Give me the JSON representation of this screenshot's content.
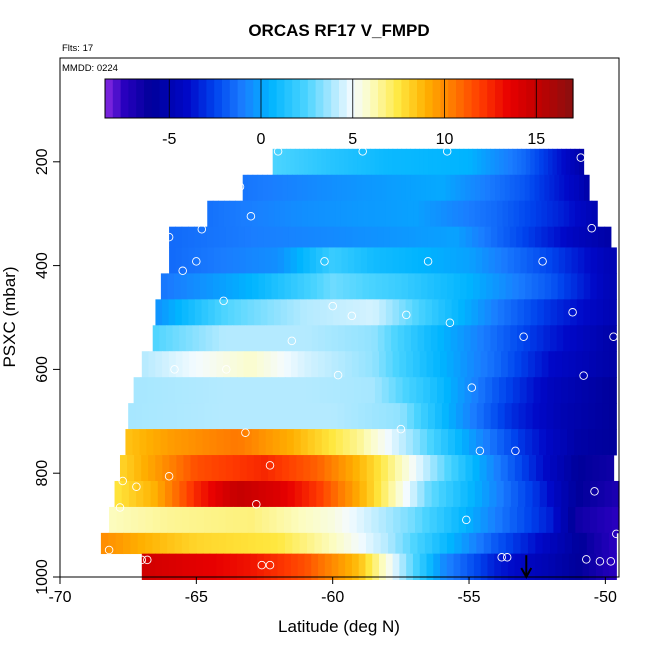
{
  "chart_data": {
    "type": "heatmap",
    "title": "ORCAS RF17 V_FMPD",
    "corner_labels": [
      "Flts: 17",
      "MMDD: 0224"
    ],
    "xlabel": "Latitude (deg N)",
    "ylabel": "PSXC (mbar)",
    "xlim": [
      -70,
      -49.5
    ],
    "ylim": [
      1000,
      0
    ],
    "x_ticks": [
      -70,
      -65,
      -60,
      -55,
      -50
    ],
    "y_ticks": [
      200,
      400,
      600,
      800,
      1000
    ],
    "x_tick_labels": [
      "-70",
      "-65",
      "-60",
      "-55",
      "-50"
    ],
    "y_tick_labels": [
      "200",
      "400",
      "600",
      "800",
      "1000"
    ],
    "colorbar": {
      "range": [
        -8.5,
        17
      ],
      "ticks": [
        -5,
        0,
        5,
        10,
        15
      ],
      "tick_labels": [
        "-5",
        "0",
        "5",
        "10",
        "15"
      ],
      "colors": [
        {
          "v": -8.5,
          "c": "#8a2be2"
        },
        {
          "v": -7.5,
          "c": "#2a00c0"
        },
        {
          "v": -6.0,
          "c": "#00009a"
        },
        {
          "v": -4.0,
          "c": "#0008c8"
        },
        {
          "v": -2.5,
          "c": "#0044ee"
        },
        {
          "v": -1.0,
          "c": "#1a7dff"
        },
        {
          "v": 0.5,
          "c": "#00b4ff"
        },
        {
          "v": 2.5,
          "c": "#4cd4ff"
        },
        {
          "v": 4.0,
          "c": "#b4eaff"
        },
        {
          "v": 5.0,
          "c": "#f4fbff"
        },
        {
          "v": 6.0,
          "c": "#fcfcc0"
        },
        {
          "v": 7.5,
          "c": "#ffe840"
        },
        {
          "v": 9.0,
          "c": "#ffb000"
        },
        {
          "v": 10.5,
          "c": "#ff7800"
        },
        {
          "v": 12.0,
          "c": "#ff3a00"
        },
        {
          "v": 13.5,
          "c": "#e80000"
        },
        {
          "v": 15.0,
          "c": "#c40000"
        },
        {
          "v": 17.0,
          "c": "#8a1010"
        }
      ]
    },
    "bands": [
      {
        "p0": 175,
        "p1": 225,
        "x0": -62.2,
        "x1": -50.8,
        "stops": [
          [
            -62.2,
            2.5
          ],
          [
            -60,
            1.5
          ],
          [
            -58,
            0.8
          ],
          [
            -55,
            0.5
          ],
          [
            -53,
            -1.5
          ],
          [
            -51.5,
            -4
          ],
          [
            -50.8,
            -5.5
          ]
        ]
      },
      {
        "p0": 225,
        "p1": 275,
        "x0": -63.3,
        "x1": -50.6,
        "stops": [
          [
            -63.3,
            -1.2
          ],
          [
            -60,
            -0.5
          ],
          [
            -56,
            0.2
          ],
          [
            -53,
            -2
          ],
          [
            -51,
            -4.5
          ],
          [
            -50.6,
            -5.5
          ]
        ]
      },
      {
        "p0": 275,
        "p1": 325,
        "x0": -64.6,
        "x1": -50.3,
        "stops": [
          [
            -64.6,
            -1.3
          ],
          [
            -61,
            -0.5
          ],
          [
            -57,
            0
          ],
          [
            -54,
            -1.5
          ],
          [
            -51.5,
            -3.5
          ],
          [
            -50.3,
            -5
          ]
        ]
      },
      {
        "p0": 325,
        "p1": 365,
        "x0": -66.0,
        "x1": -49.8,
        "stops": [
          [
            -66,
            -1.5
          ],
          [
            -63,
            -1
          ],
          [
            -59,
            -0.5
          ],
          [
            -55.5,
            0
          ],
          [
            -53,
            -2.5
          ],
          [
            -51,
            -4.5
          ],
          [
            -49.8,
            -5.5
          ]
        ]
      },
      {
        "p0": 365,
        "p1": 415,
        "x0": -66.0,
        "x1": -49.6,
        "stops": [
          [
            -66,
            -1.5
          ],
          [
            -62,
            -0.5
          ],
          [
            -60,
            2
          ],
          [
            -58.5,
            1
          ],
          [
            -55,
            0
          ],
          [
            -52,
            -2.5
          ],
          [
            -49.6,
            -5
          ]
        ]
      },
      {
        "p0": 415,
        "p1": 465,
        "x0": -66.3,
        "x1": -49.6,
        "stops": [
          [
            -66.3,
            -1.2
          ],
          [
            -63,
            0.5
          ],
          [
            -60,
            3
          ],
          [
            -57.5,
            2
          ],
          [
            -55,
            0.5
          ],
          [
            -52,
            -2
          ],
          [
            -49.6,
            -5
          ]
        ]
      },
      {
        "p0": 465,
        "p1": 515,
        "x0": -66.5,
        "x1": -49.6,
        "stops": [
          [
            -66.5,
            -0.5
          ],
          [
            -64,
            2.5
          ],
          [
            -61,
            4
          ],
          [
            -58.5,
            4.5
          ],
          [
            -56.5,
            2
          ],
          [
            -54,
            -1
          ],
          [
            -52,
            -3
          ],
          [
            -49.6,
            -5
          ]
        ]
      },
      {
        "p0": 515,
        "p1": 565,
        "x0": -66.6,
        "x1": -49.6,
        "stops": [
          [
            -66.6,
            2.5
          ],
          [
            -64,
            4
          ],
          [
            -61,
            4
          ],
          [
            -58.5,
            3.5
          ],
          [
            -56.5,
            1
          ],
          [
            -54,
            -1.5
          ],
          [
            -52,
            -3.5
          ],
          [
            -49.6,
            -5.5
          ]
        ]
      },
      {
        "p0": 565,
        "p1": 615,
        "x0": -67.0,
        "x1": -49.6,
        "stops": [
          [
            -67,
            4
          ],
          [
            -65,
            5
          ],
          [
            -63,
            5.8
          ],
          [
            -61,
            4.5
          ],
          [
            -58.5,
            3.5
          ],
          [
            -56.5,
            1
          ],
          [
            -54,
            -1.5
          ],
          [
            -52,
            -4
          ],
          [
            -49.6,
            -5.5
          ]
        ]
      },
      {
        "p0": 615,
        "p1": 665,
        "x0": -67.3,
        "x1": -49.6,
        "stops": [
          [
            -67.3,
            3.8
          ],
          [
            -64,
            4
          ],
          [
            -61,
            4
          ],
          [
            -58.5,
            3.8
          ],
          [
            -56.5,
            1.5
          ],
          [
            -54,
            -2
          ],
          [
            -52,
            -4.5
          ],
          [
            -49.6,
            -6
          ]
        ]
      },
      {
        "p0": 665,
        "p1": 715,
        "x0": -67.5,
        "x1": -49.6,
        "stops": [
          [
            -67.5,
            3.8
          ],
          [
            -64,
            4
          ],
          [
            -60,
            4
          ],
          [
            -57.5,
            3.5
          ],
          [
            -55.5,
            0
          ],
          [
            -53.5,
            -3
          ],
          [
            -51.5,
            -5
          ],
          [
            -49.6,
            -6
          ]
        ]
      },
      {
        "p0": 715,
        "p1": 765,
        "x0": -67.6,
        "x1": -49.6,
        "stops": [
          [
            -67.6,
            8.5
          ],
          [
            -66,
            9.5
          ],
          [
            -63.5,
            10.5
          ],
          [
            -61.5,
            9
          ],
          [
            -59,
            6.5
          ],
          [
            -57,
            3.5
          ],
          [
            -55,
            0
          ],
          [
            -53,
            -3
          ],
          [
            -51,
            -5.5
          ],
          [
            -49.6,
            -6
          ]
        ]
      },
      {
        "p0": 765,
        "p1": 815,
        "x0": -67.8,
        "x1": -49.7,
        "stops": [
          [
            -67.8,
            8
          ],
          [
            -66.5,
            9.5
          ],
          [
            -65,
            11.5
          ],
          [
            -62.5,
            12.5
          ],
          [
            -60.5,
            11
          ],
          [
            -58.5,
            8
          ],
          [
            -56.5,
            4
          ],
          [
            -54.5,
            0
          ],
          [
            -52.5,
            -3.5
          ],
          [
            -51,
            -6
          ],
          [
            -49.7,
            -6.5
          ]
        ]
      },
      {
        "p0": 815,
        "p1": 865,
        "x0": -68.0,
        "x1": -49.5,
        "stops": [
          [
            -68,
            7.5
          ],
          [
            -66.5,
            9
          ],
          [
            -65,
            12.5
          ],
          [
            -63.5,
            15
          ],
          [
            -62,
            14
          ],
          [
            -60.5,
            12
          ],
          [
            -58.5,
            8
          ],
          [
            -56.5,
            3
          ],
          [
            -54.5,
            0
          ],
          [
            -52.5,
            -3
          ],
          [
            -51,
            -6
          ],
          [
            -49.5,
            -7
          ]
        ]
      },
      {
        "p0": 865,
        "p1": 915,
        "x0": -68.2,
        "x1": -49.5,
        "stops": [
          [
            -68.2,
            6
          ],
          [
            -66,
            6.5
          ],
          [
            -63,
            6.8
          ],
          [
            -60,
            5.5
          ],
          [
            -57,
            3
          ],
          [
            -55.5,
            1
          ],
          [
            -54,
            -1
          ],
          [
            -52,
            -3.5
          ],
          [
            -51,
            -6.5
          ],
          [
            -49.5,
            -7.5
          ]
        ]
      },
      {
        "p0": 915,
        "p1": 955,
        "x0": -68.5,
        "x1": -49.6,
        "stops": [
          [
            -68.5,
            10
          ],
          [
            -67,
            9
          ],
          [
            -65,
            8
          ],
          [
            -62,
            7.5
          ],
          [
            -60,
            6
          ],
          [
            -58,
            4
          ],
          [
            -56,
            1
          ],
          [
            -54,
            -2
          ],
          [
            -52,
            -4.5
          ],
          [
            -50.5,
            -6.5
          ],
          [
            -49.6,
            -7.5
          ]
        ]
      },
      {
        "p0": 955,
        "p1": 1005,
        "x0": -67.0,
        "x1": -49.6,
        "stops": [
          [
            -67,
            14.5
          ],
          [
            -63,
            13
          ],
          [
            -61,
            11.5
          ],
          [
            -59,
            8.5
          ],
          [
            -57.5,
            4
          ],
          [
            -56,
            -0.5
          ],
          [
            -54,
            -3.5
          ],
          [
            -52,
            -5
          ],
          [
            -50.5,
            -6.5
          ],
          [
            -49.6,
            -7.5
          ]
        ]
      }
    ],
    "circles": [
      [
        -62.0,
        180
      ],
      [
        -58.9,
        180
      ],
      [
        -55.8,
        180
      ],
      [
        -50.9,
        192
      ],
      [
        -63.4,
        248
      ],
      [
        -50.5,
        328
      ],
      [
        -63.0,
        305
      ],
      [
        -64.8,
        330
      ],
      [
        -66.0,
        345
      ],
      [
        -65.0,
        392
      ],
      [
        -60.3,
        392
      ],
      [
        -56.5,
        392
      ],
      [
        -52.3,
        392
      ],
      [
        -65.5,
        410
      ],
      [
        -64.0,
        468
      ],
      [
        -60.0,
        478
      ],
      [
        -59.3,
        497
      ],
      [
        -57.3,
        495
      ],
      [
        -55.7,
        510
      ],
      [
        -51.2,
        490
      ],
      [
        -53.0,
        537
      ],
      [
        -49.7,
        537
      ],
      [
        -61.5,
        545
      ],
      [
        -65.8,
        600
      ],
      [
        -63.9,
        600
      ],
      [
        -59.8,
        611
      ],
      [
        -54.9,
        635
      ],
      [
        -50.8,
        612
      ],
      [
        -63.2,
        722
      ],
      [
        -57.5,
        715
      ],
      [
        -62.3,
        785
      ],
      [
        -54.6,
        757
      ],
      [
        -53.3,
        757
      ],
      [
        -66.0,
        806
      ],
      [
        -67.7,
        815
      ],
      [
        -67.2,
        826
      ],
      [
        -50.4,
        835
      ],
      [
        -62.8,
        860
      ],
      [
        -67.8,
        866
      ],
      [
        -55.1,
        890
      ],
      [
        -49.6,
        917
      ],
      [
        -68.2,
        948
      ],
      [
        -67.0,
        967
      ],
      [
        -66.8,
        967
      ],
      [
        -62.6,
        977
      ],
      [
        -62.3,
        977
      ],
      [
        -53.8,
        962
      ],
      [
        -53.6,
        962
      ],
      [
        -49.8,
        970
      ],
      [
        -50.2,
        970
      ],
      [
        -50.7,
        966
      ]
    ],
    "arrow": {
      "x": -52.9,
      "p_start": 958,
      "p_end": 1000
    }
  }
}
